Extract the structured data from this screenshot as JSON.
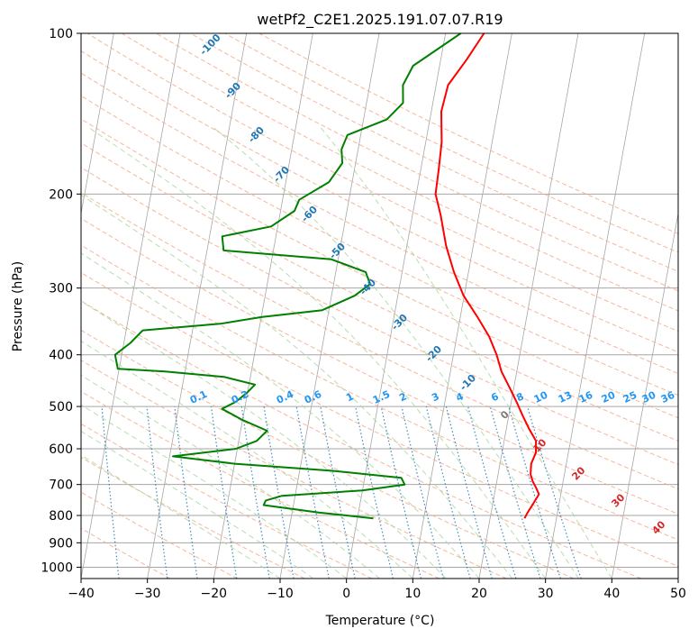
{
  "chart_data": {
    "type": "line",
    "title": "wetPf2_C2E1.2025.191.07.07.R19",
    "xlabel": "Temperature (°C)",
    "ylabel": "Pressure (hPa)",
    "xlim": [
      -40,
      50
    ],
    "ylim": [
      1050,
      100
    ],
    "y_scale": "log",
    "grid": true,
    "x_ticks": [
      -40,
      -30,
      -20,
      -10,
      0,
      10,
      20,
      30,
      40,
      50
    ],
    "y_ticks": [
      100,
      200,
      300,
      400,
      500,
      600,
      700,
      800,
      900,
      1000
    ],
    "series": [
      {
        "color": "#ff0000",
        "points": [
          {
            "p": 810,
            "t": 25.2
          },
          {
            "p": 790,
            "t": 25.5
          },
          {
            "p": 770,
            "t": 25.9
          },
          {
            "p": 750,
            "t": 26.3
          },
          {
            "p": 730,
            "t": 26.7
          },
          {
            "p": 710,
            "t": 26.1
          },
          {
            "p": 690,
            "t": 25.4
          },
          {
            "p": 670,
            "t": 24.9
          },
          {
            "p": 640,
            "t": 24.7
          },
          {
            "p": 610,
            "t": 25.1
          },
          {
            "p": 580,
            "t": 24.8
          },
          {
            "p": 550,
            "t": 23.4
          },
          {
            "p": 520,
            "t": 22.1
          },
          {
            "p": 490,
            "t": 20.8
          },
          {
            "p": 460,
            "t": 19.3
          },
          {
            "p": 430,
            "t": 17.7
          },
          {
            "p": 400,
            "t": 16.5
          },
          {
            "p": 370,
            "t": 14.9
          },
          {
            "p": 340,
            "t": 12.6
          },
          {
            "p": 310,
            "t": 9.9
          },
          {
            "p": 280,
            "t": 7.8
          },
          {
            "p": 250,
            "t": 5.9
          },
          {
            "p": 220,
            "t": 4.3
          },
          {
            "p": 200,
            "t": 2.9
          },
          {
            "p": 180,
            "t": 2.7
          },
          {
            "p": 160,
            "t": 2.4
          },
          {
            "p": 140,
            "t": 1.5
          },
          {
            "p": 125,
            "t": 1.8
          },
          {
            "p": 112,
            "t": 3.9
          },
          {
            "p": 100,
            "t": 5.8
          }
        ]
      },
      {
        "color": "#008000",
        "points": [
          {
            "p": 810,
            "t": 2.4
          },
          {
            "p": 790,
            "t": -6.0
          },
          {
            "p": 765,
            "t": -14.5
          },
          {
            "p": 750,
            "t": -14.3
          },
          {
            "p": 735,
            "t": -12.0
          },
          {
            "p": 718,
            "t": 0.0
          },
          {
            "p": 700,
            "t": 6.2
          },
          {
            "p": 680,
            "t": 5.5
          },
          {
            "p": 660,
            "t": -5.0
          },
          {
            "p": 640,
            "t": -20.0
          },
          {
            "p": 620,
            "t": -29.5
          },
          {
            "p": 600,
            "t": -20.2
          },
          {
            "p": 580,
            "t": -17.3
          },
          {
            "p": 555,
            "t": -16.0
          },
          {
            "p": 530,
            "t": -20.0
          },
          {
            "p": 505,
            "t": -23.4
          },
          {
            "p": 490,
            "t": -21.5
          },
          {
            "p": 470,
            "t": -20.0
          },
          {
            "p": 455,
            "t": -19.1
          },
          {
            "p": 440,
            "t": -24.0
          },
          {
            "p": 430,
            "t": -33.0
          },
          {
            "p": 425,
            "t": -40.2
          },
          {
            "p": 400,
            "t": -41.0
          },
          {
            "p": 380,
            "t": -39.0
          },
          {
            "p": 360,
            "t": -37.5
          },
          {
            "p": 350,
            "t": -26.0
          },
          {
            "p": 340,
            "t": -20.0
          },
          {
            "p": 330,
            "t": -11.0
          },
          {
            "p": 310,
            "t": -6.5
          },
          {
            "p": 295,
            "t": -4.5
          },
          {
            "p": 280,
            "t": -5.5
          },
          {
            "p": 265,
            "t": -11.0
          },
          {
            "p": 255,
            "t": -27.5
          },
          {
            "p": 240,
            "t": -28.1
          },
          {
            "p": 230,
            "t": -21.0
          },
          {
            "p": 215,
            "t": -17.9
          },
          {
            "p": 205,
            "t": -17.5
          },
          {
            "p": 190,
            "t": -13.5
          },
          {
            "p": 175,
            "t": -12.0
          },
          {
            "p": 165,
            "t": -12.5
          },
          {
            "p": 155,
            "t": -12.0
          },
          {
            "p": 145,
            "t": -6.5
          },
          {
            "p": 135,
            "t": -4.5
          },
          {
            "p": 125,
            "t": -5.0
          },
          {
            "p": 115,
            "t": -4.0
          },
          {
            "p": 100,
            "t": 2.3
          }
        ]
      }
    ],
    "dry_adiabat_labels": [
      "-100",
      "-90",
      "-80",
      "-70",
      "-60",
      "-50",
      "-40",
      "-30",
      "-20",
      "-10",
      "0",
      "10",
      "20",
      "30",
      "40"
    ],
    "mixing_ratio_labels": [
      "0.1",
      "0.2",
      "0.4",
      "0.6",
      "1",
      "1.5",
      "2",
      "3",
      "4",
      "6",
      "8",
      "10",
      "13",
      "16",
      "20",
      "25",
      "30",
      "36"
    ],
    "colors": {
      "isotherm": "#a6a6a6",
      "dry_adiabat": "#f4a582",
      "moist_adiabat": "#a6d49c",
      "mixing_ratio": "#1f77b4",
      "temperature": "#ff0000",
      "dewpoint": "#008000"
    }
  }
}
